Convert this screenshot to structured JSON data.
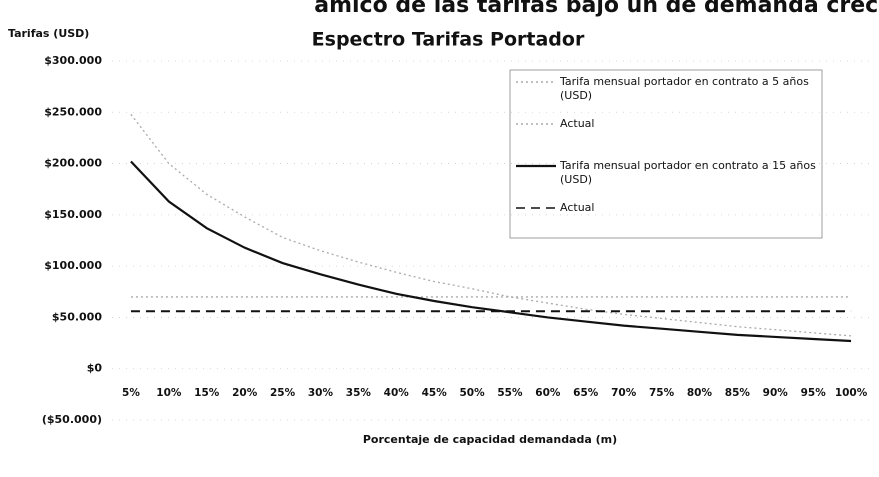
{
  "chart_data": {
    "type": "line",
    "header": "ámico de las tarifas bajo un de demanda creci",
    "title": "Espectro Tarifas Portador",
    "y_label": "Tarifas (USD)",
    "x_label": "Porcentaje de capacidad demandada (m)",
    "categories": [
      "5%",
      "10%",
      "15%",
      "20%",
      "25%",
      "30%",
      "35%",
      "40%",
      "45%",
      "50%",
      "55%",
      "60%",
      "65%",
      "70%",
      "75%",
      "80%",
      "85%",
      "90%",
      "95%",
      "100%"
    ],
    "ylim": [
      -50000,
      300000
    ],
    "yticks": [
      {
        "value": -50000,
        "label": "($50.000)"
      },
      {
        "value": 0,
        "label": "$0"
      },
      {
        "value": 50000,
        "label": "$50.000"
      },
      {
        "value": 100000,
        "label": "$100.000"
      },
      {
        "value": 150000,
        "label": "$150.000"
      },
      {
        "value": 200000,
        "label": "$200.000"
      },
      {
        "value": 250000,
        "label": "$250.000"
      },
      {
        "value": 300000,
        "label": "$300.000"
      }
    ],
    "grid": true,
    "legend": "upper right",
    "series": [
      {
        "name": "Tarifa mensual portador en contrato a 5 años (USD)",
        "color": "#aaaaaa",
        "dash": "dotted",
        "values": [
          248000,
          200000,
          170000,
          148000,
          128000,
          115000,
          104000,
          94000,
          85000,
          78000,
          70000,
          64000,
          58000,
          53000,
          49000,
          45000,
          41000,
          38000,
          35000,
          32000
        ]
      },
      {
        "name": "Actual",
        "color": "#aaaaaa",
        "dash": "dotted",
        "values": [
          70000,
          70000,
          70000,
          70000,
          70000,
          70000,
          70000,
          70000,
          70000,
          70000,
          70000,
          70000,
          70000,
          70000,
          70000,
          70000,
          70000,
          70000,
          70000,
          70000
        ]
      },
      {
        "name": "Tarifa mensual portador en contrato a 15 años (USD)",
        "color": "#111111",
        "dash": "solid",
        "values": [
          202000,
          163000,
          137000,
          118000,
          103000,
          92000,
          82000,
          73000,
          66000,
          60000,
          55000,
          50000,
          46000,
          42000,
          39000,
          36000,
          33000,
          31000,
          29000,
          27000
        ]
      },
      {
        "name": "Actual",
        "color": "#111111",
        "dash": "dashed",
        "values": [
          56000,
          56000,
          56000,
          56000,
          56000,
          56000,
          56000,
          56000,
          56000,
          56000,
          56000,
          56000,
          56000,
          56000,
          56000,
          56000,
          56000,
          56000,
          56000,
          56000
        ]
      }
    ]
  }
}
